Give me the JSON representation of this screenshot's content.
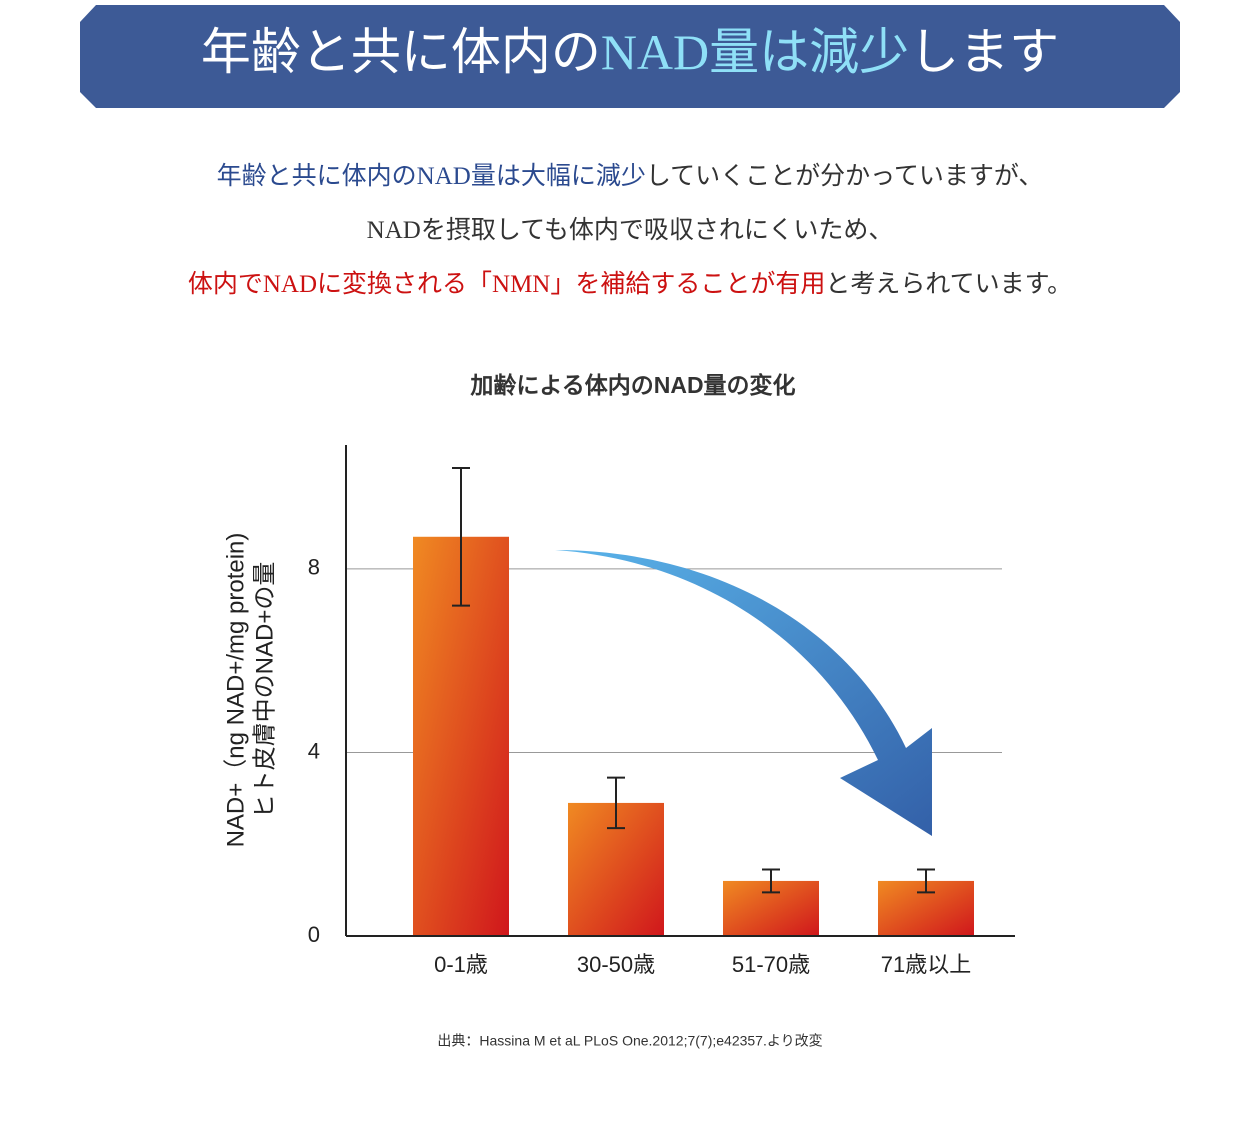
{
  "banner": {
    "segments": [
      {
        "text": "年齢と共に体内の",
        "color": "#ffffff"
      },
      {
        "text": "NAD量は減少",
        "color": "#8fe0f7"
      },
      {
        "text": "します",
        "color": "#ffffff"
      }
    ]
  },
  "paragraph": [
    {
      "segments": [
        {
          "text": "年齢と共に体内のNAD量は大幅に減少",
          "color": "#2b4a8f"
        },
        {
          "text": "していくことが分かっていますが、",
          "color": "#333333"
        }
      ]
    },
    {
      "segments": [
        {
          "text": "NADを摂取しても体内で吸収されにくいため、",
          "color": "#333333"
        }
      ]
    },
    {
      "segments": [
        {
          "text": "体内でNADに変換される「NMN」を補給することが有用",
          "color": "#cc1111"
        },
        {
          "text": "と考えられています。",
          "color": "#333333"
        }
      ]
    }
  ],
  "chart_data": {
    "type": "bar",
    "title": "加齢による体内のNAD量の変化",
    "y_label_lines": [
      "NAD+（ng NAD+/mg protein)",
      "ヒト皮膚中のNAD+の量"
    ],
    "categories": [
      "0-1歳",
      "30-50歳",
      "51-70歳",
      "71歳以上"
    ],
    "values": [
      8.7,
      2.9,
      1.2,
      1.2
    ],
    "errors": [
      1.5,
      0.55,
      0.25,
      0.25
    ],
    "ylim": [
      0,
      10.7
    ],
    "yticks": [
      0,
      4,
      8
    ],
    "grid": true,
    "color_top": "#f08a22",
    "color_bottom": "#d0161c"
  },
  "source": "出典：Hassina M et aL PLoS One.2012;7(7);e42357.より改変"
}
